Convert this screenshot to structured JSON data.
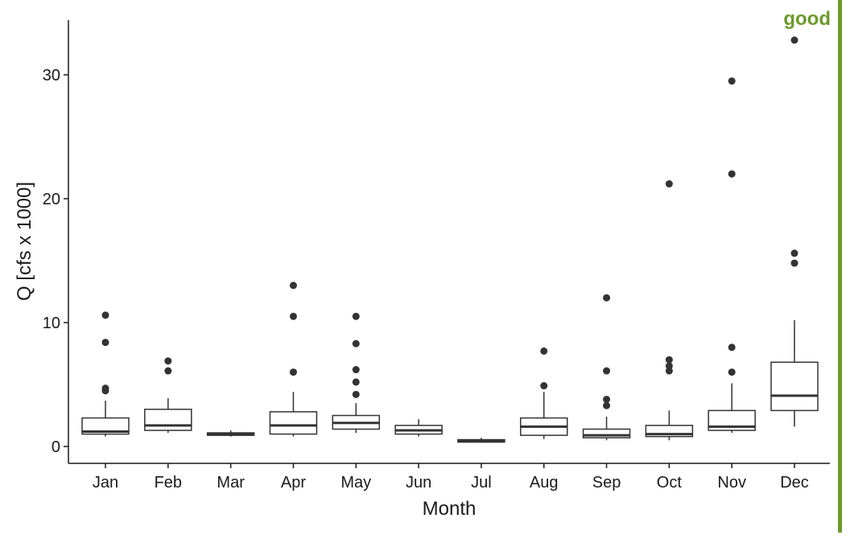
{
  "flag": {
    "label": "good",
    "color": "#6b9a2a"
  },
  "chart_data": {
    "type": "boxplot",
    "xlabel": "Month",
    "ylabel": "Q [cfs x 1000]",
    "ylim": [
      -1.5,
      34.5
    ],
    "yticks": [
      0,
      10,
      20,
      30
    ],
    "grid": false,
    "categories": [
      "Jan",
      "Feb",
      "Mar",
      "Apr",
      "May",
      "Jun",
      "Jul",
      "Aug",
      "Sep",
      "Oct",
      "Nov",
      "Dec"
    ],
    "boxes": [
      {
        "month": "Jan",
        "whisker_low": 0.8,
        "q1": 1.0,
        "median": 1.2,
        "q3": 2.3,
        "whisker_high": 3.7,
        "outliers": [
          4.5,
          4.7,
          8.4,
          10.6
        ]
      },
      {
        "month": "Feb",
        "whisker_low": 1.1,
        "q1": 1.3,
        "median": 1.7,
        "q3": 3.0,
        "whisker_high": 3.9,
        "outliers": [
          6.1,
          6.9
        ]
      },
      {
        "month": "Mar",
        "whisker_low": 0.8,
        "q1": 0.9,
        "median": 1.0,
        "q3": 1.1,
        "whisker_high": 1.3,
        "outliers": []
      },
      {
        "month": "Apr",
        "whisker_low": 0.8,
        "q1": 1.0,
        "median": 1.7,
        "q3": 2.8,
        "whisker_high": 4.4,
        "outliers": [
          6.0,
          10.5,
          13.0
        ]
      },
      {
        "month": "May",
        "whisker_low": 1.1,
        "q1": 1.4,
        "median": 1.9,
        "q3": 2.5,
        "whisker_high": 3.5,
        "outliers": [
          4.2,
          5.2,
          6.2,
          8.3,
          10.5
        ]
      },
      {
        "month": "Jun",
        "whisker_low": 0.8,
        "q1": 1.0,
        "median": 1.3,
        "q3": 1.7,
        "whisker_high": 2.2,
        "outliers": []
      },
      {
        "month": "Jul",
        "whisker_low": 0.3,
        "q1": 0.35,
        "median": 0.45,
        "q3": 0.55,
        "whisker_high": 0.7,
        "outliers": []
      },
      {
        "month": "Aug",
        "whisker_low": 0.6,
        "q1": 0.9,
        "median": 1.6,
        "q3": 2.3,
        "whisker_high": 4.4,
        "outliers": [
          4.9,
          7.7
        ]
      },
      {
        "month": "Sep",
        "whisker_low": 0.5,
        "q1": 0.7,
        "median": 0.9,
        "q3": 1.4,
        "whisker_high": 2.4,
        "outliers": [
          3.3,
          3.8,
          6.1,
          12.0
        ]
      },
      {
        "month": "Oct",
        "whisker_low": 0.5,
        "q1": 0.8,
        "median": 1.0,
        "q3": 1.7,
        "whisker_high": 2.9,
        "outliers": [
          6.1,
          6.5,
          7.0,
          21.2
        ]
      },
      {
        "month": "Nov",
        "whisker_low": 1.1,
        "q1": 1.3,
        "median": 1.6,
        "q3": 2.9,
        "whisker_high": 5.1,
        "outliers": [
          6.0,
          8.0,
          22.0,
          29.5
        ]
      },
      {
        "month": "Dec",
        "whisker_low": 1.6,
        "q1": 2.9,
        "median": 4.1,
        "q3": 6.8,
        "whisker_high": 10.2,
        "outliers": [
          14.8,
          15.6,
          32.8
        ]
      }
    ]
  }
}
